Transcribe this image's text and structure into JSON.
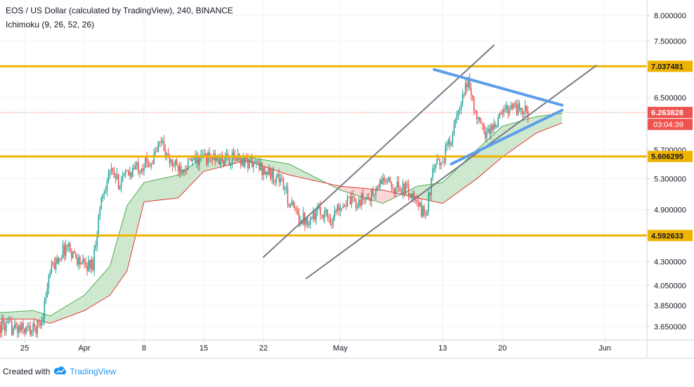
{
  "header": {
    "title": "EOS / US Dollar (calculated by TradingView), 240, BINANCE",
    "indicator": "Ichimoku (9, 26, 52, 26)"
  },
  "footer": {
    "created_with": "Created with",
    "brand": "TradingView"
  },
  "colors": {
    "up_candle": "#26a69a",
    "down_candle": "#ef5350",
    "horizontal_level": "#f0b400",
    "trend_channel": "#787b86",
    "wedge": "#5d9ee9",
    "cloud_bull": "#a5d6a7",
    "cloud_bear": "#f8b4b4",
    "last_price_tag": "#ef5350"
  },
  "chart_data": {
    "type": "candlestick",
    "symbol": "EOS / US Dollar (calculated by TradingView)",
    "interval": "240",
    "exchange": "BINANCE",
    "x_axis": {
      "labels": [
        "25",
        "Apr",
        "8",
        "15",
        "22",
        "May",
        "13",
        "20",
        "Jun"
      ],
      "dates": [
        "2019-03-25",
        "2019-04-01",
        "2019-04-08",
        "2019-04-15",
        "2019-04-22",
        "2019-05-01",
        "2019-05-13",
        "2019-05-20",
        "2019-06-01"
      ]
    },
    "y_axis": {
      "ticks": [
        "8.000000",
        "7.500000",
        "6.500000",
        "5.700000",
        "5.300000",
        "4.900000",
        "4.300000",
        "4.050000",
        "3.850000",
        "3.650000"
      ]
    },
    "price_levels": [
      {
        "name": "level-7.037481",
        "value": 7.037481,
        "label": "7.037481"
      },
      {
        "name": "level-5.606295",
        "value": 5.606295,
        "label": "5.606295"
      },
      {
        "name": "level-4.592633",
        "value": 4.592633,
        "label": "4.592633"
      }
    ],
    "last_price": {
      "value": 6.263828,
      "label": "6.263828",
      "countdown": "03:04:39"
    },
    "price_path": [
      [
        "2019-03-22",
        3.66
      ],
      [
        "2019-03-24",
        3.63
      ],
      [
        "2019-03-26",
        3.62
      ],
      [
        "2019-03-27",
        3.7
      ],
      [
        "2019-03-28",
        4.2
      ],
      [
        "2019-03-29",
        4.35
      ],
      [
        "2019-03-30",
        4.48
      ],
      [
        "2019-03-31",
        4.35
      ],
      [
        "2019-04-01",
        4.25
      ],
      [
        "2019-04-02",
        4.28
      ],
      [
        "2019-04-03",
        5.05
      ],
      [
        "2019-04-04",
        5.4
      ],
      [
        "2019-04-05",
        5.25
      ],
      [
        "2019-04-06",
        5.35
      ],
      [
        "2019-04-07",
        5.45
      ],
      [
        "2019-04-08",
        5.5
      ],
      [
        "2019-04-09",
        5.55
      ],
      [
        "2019-04-10",
        5.85
      ],
      [
        "2019-04-11",
        5.52
      ],
      [
        "2019-04-12",
        5.45
      ],
      [
        "2019-04-13",
        5.5
      ],
      [
        "2019-04-14",
        5.55
      ],
      [
        "2019-04-15",
        5.6
      ],
      [
        "2019-04-17",
        5.55
      ],
      [
        "2019-04-19",
        5.58
      ],
      [
        "2019-04-21",
        5.5
      ],
      [
        "2019-04-22",
        5.42
      ],
      [
        "2019-04-23",
        5.35
      ],
      [
        "2019-04-24",
        5.3
      ],
      [
        "2019-04-25",
        5.0
      ],
      [
        "2019-04-26",
        4.82
      ],
      [
        "2019-04-27",
        4.78
      ],
      [
        "2019-04-28",
        4.85
      ],
      [
        "2019-04-29",
        4.88
      ],
      [
        "2019-04-30",
        4.78
      ],
      [
        "2019-05-01",
        4.98
      ],
      [
        "2019-05-03",
        5.0
      ],
      [
        "2019-05-05",
        5.1
      ],
      [
        "2019-05-06",
        5.3
      ],
      [
        "2019-05-07",
        5.2
      ],
      [
        "2019-05-09",
        5.15
      ],
      [
        "2019-05-10",
        4.95
      ],
      [
        "2019-05-11",
        4.85
      ],
      [
        "2019-05-12",
        5.45
      ],
      [
        "2019-05-13",
        5.55
      ],
      [
        "2019-05-14",
        5.9
      ],
      [
        "2019-05-15",
        6.3
      ],
      [
        "2019-05-16",
        6.8
      ],
      [
        "2019-05-17",
        6.15
      ],
      [
        "2019-05-18",
        5.95
      ],
      [
        "2019-05-19",
        6.05
      ],
      [
        "2019-05-20",
        6.25
      ],
      [
        "2019-05-21",
        6.4
      ],
      [
        "2019-05-22",
        6.3
      ],
      [
        "2019-05-23",
        6.26
      ]
    ],
    "drawings": {
      "upper_channel": [
        [
          "2019-04-22",
          4.35
        ],
        [
          "2019-05-19",
          7.42
        ]
      ],
      "lower_channel": [
        [
          "2019-04-27",
          4.12
        ],
        [
          "2019-05-31",
          7.05
        ]
      ],
      "wedge_top": [
        [
          "2019-05-12",
          6.98
        ],
        [
          "2019-05-27",
          6.38
        ]
      ],
      "wedge_bottom": [
        [
          "2019-05-14",
          5.5
        ],
        [
          "2019-05-27",
          6.3
        ]
      ]
    },
    "ichimoku_cloud": {
      "span_a": [
        [
          "2019-03-22",
          3.78
        ],
        [
          "2019-03-26",
          3.8
        ],
        [
          "2019-03-28",
          3.75
        ],
        [
          "2019-04-01",
          3.95
        ],
        [
          "2019-04-04",
          4.25
        ],
        [
          "2019-04-06",
          4.95
        ],
        [
          "2019-04-08",
          5.25
        ],
        [
          "2019-04-12",
          5.35
        ],
        [
          "2019-04-15",
          5.6
        ],
        [
          "2019-04-20",
          5.6
        ],
        [
          "2019-04-25",
          5.5
        ],
        [
          "2019-05-01",
          5.15
        ],
        [
          "2019-05-06",
          4.98
        ],
        [
          "2019-05-10",
          5.2
        ],
        [
          "2019-05-13",
          5.25
        ],
        [
          "2019-05-17",
          5.7
        ],
        [
          "2019-05-20",
          6.05
        ],
        [
          "2019-05-24",
          6.2
        ],
        [
          "2019-05-27",
          6.25
        ]
      ],
      "span_b": [
        [
          "2019-03-22",
          3.72
        ],
        [
          "2019-03-26",
          3.72
        ],
        [
          "2019-03-28",
          3.68
        ],
        [
          "2019-04-01",
          3.8
        ],
        [
          "2019-04-04",
          3.95
        ],
        [
          "2019-04-06",
          4.2
        ],
        [
          "2019-04-08",
          5.0
        ],
        [
          "2019-04-12",
          5.05
        ],
        [
          "2019-04-15",
          5.4
        ],
        [
          "2019-04-20",
          5.55
        ],
        [
          "2019-04-25",
          5.35
        ],
        [
          "2019-05-01",
          5.2
        ],
        [
          "2019-05-06",
          5.15
        ],
        [
          "2019-05-10",
          5.05
        ],
        [
          "2019-05-13",
          4.98
        ],
        [
          "2019-05-17",
          5.3
        ],
        [
          "2019-05-20",
          5.6
        ],
        [
          "2019-05-24",
          5.95
        ],
        [
          "2019-05-27",
          6.1
        ]
      ]
    }
  }
}
